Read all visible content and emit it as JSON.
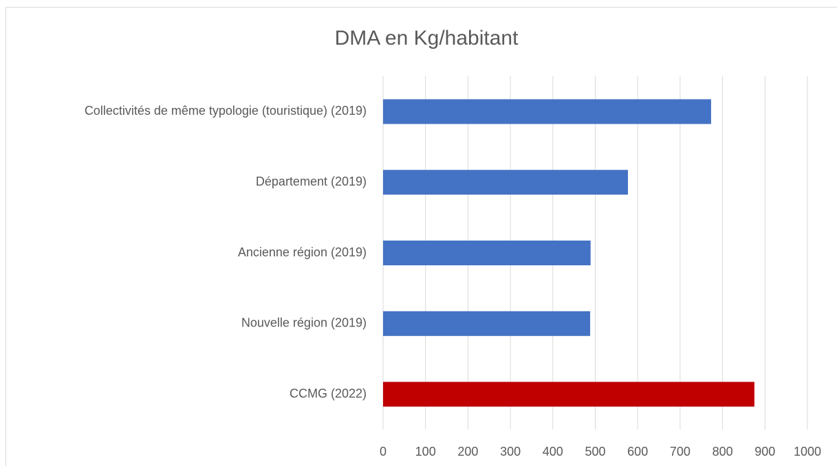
{
  "chart_data": {
    "type": "barh",
    "title": "DMA en Kg/habitant",
    "categories": [
      "Collectivités de même typologie (touristique) (2019)",
      "Département (2019)",
      "Ancienne région (2019)",
      "Nouvelle région (2019)",
      "CCMG (2022)"
    ],
    "values": [
      773,
      577,
      489,
      488,
      875
    ],
    "colors": [
      "#4472c4",
      "#4472c4",
      "#4472c4",
      "#4472c4",
      "#c00000"
    ],
    "xlim": [
      0,
      1000
    ],
    "xticks": [
      0,
      100,
      200,
      300,
      400,
      500,
      600,
      700,
      800,
      900,
      1000
    ],
    "grid": true
  }
}
